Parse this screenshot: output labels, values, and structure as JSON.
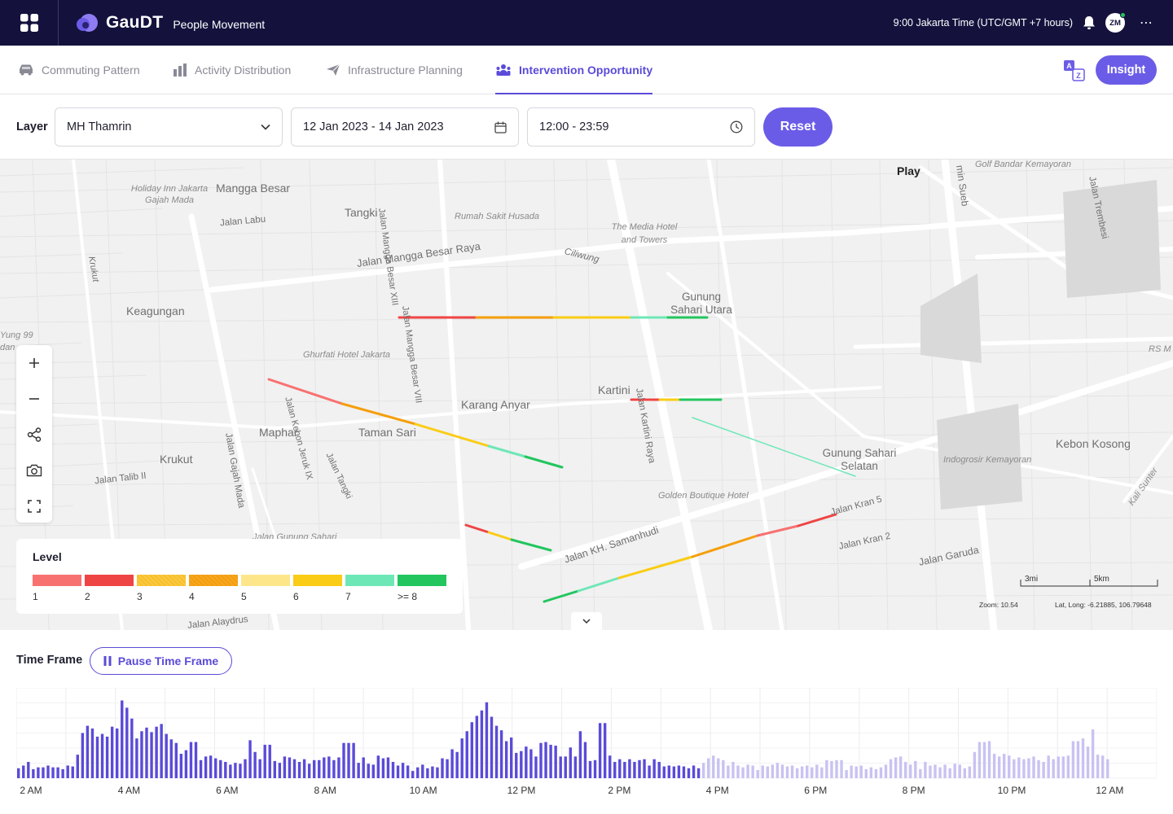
{
  "app": {
    "brand": "GauDT",
    "module": "People Movement",
    "time_zone_text": "9:00 Jakarta Time (UTC/GMT +7 hours)",
    "user_initials": "ZM",
    "more_label": "⋯"
  },
  "tabs": [
    {
      "label": "Commuting Pattern",
      "icon": "car-icon",
      "active": false
    },
    {
      "label": "Activity Distribution",
      "icon": "bar-building-icon",
      "active": false
    },
    {
      "label": "Infrastructure Planning",
      "icon": "paper-plane-icon",
      "active": false
    },
    {
      "label": "Intervention Opportunity",
      "icon": "people-icon",
      "active": true
    }
  ],
  "header_actions": {
    "translate_icon": "translate-icon",
    "insight_label": "Insight"
  },
  "filters": {
    "layer_label": "Layer",
    "layer_value": "MH Thamrin",
    "date_range": "12 Jan 2023 - 14 Jan 2023",
    "time_range": "12:00 - 23:59",
    "reset_label": "Reset"
  },
  "map": {
    "play_label": "Play",
    "labels": [
      "Mangga Besar",
      "Tangki",
      "Keagungan",
      "Karang Anyar",
      "Kartini",
      "Maphar",
      "Taman Sari",
      "Krukut",
      "Gunung Sahari Utara",
      "Gunung Sahari Selatan",
      "Kebon Kosong",
      "Jalan Mangga Besar Raya",
      "Jalan Labu",
      "Jalan Mangga Besar XIII",
      "Jalan Mangga Besar VIII",
      "Jalan Kebon Jeruk IX",
      "Jalan Tangki",
      "Jalan Gajah Mada",
      "Jalan Talib II",
      "Jalan Kartini Raya",
      "Jalan KH. Samanhudi",
      "Jalan Kran 5",
      "Jalan Kran 2",
      "Jalan Garuda",
      "Jalan Alaydrus",
      "Ciliwung",
      "Jalan Trembesi",
      "Krukut",
      "Holiday Inn Jakarta Gajah Mada",
      "Rumah Sakit Husada",
      "The Media Hotel and Towers",
      "Ghurfati Hotel Jakarta",
      "Golden Boutique Hotel",
      "Indogrosir Kemayoran",
      "Golf Bandar Kemayoran",
      "RS M",
      "Kali Sunter",
      "Jalan Gunung Sahari",
      "Yung 99",
      "dan",
      "min Sueb"
    ],
    "controls": [
      {
        "name": "zoom-in-button",
        "icon": "plus-icon"
      },
      {
        "name": "zoom-out-button",
        "icon": "minus-icon"
      },
      {
        "name": "share-button",
        "icon": "share-icon"
      },
      {
        "name": "screenshot-button",
        "icon": "camera-icon"
      },
      {
        "name": "fullscreen-button",
        "icon": "fullscreen-icon"
      }
    ],
    "scale": {
      "left": "3mi",
      "right": "5km"
    },
    "zoom_text": "Zoom: 10.54",
    "latlon_text": "Lat, Long: -6.21885, 106.79648",
    "legend": {
      "title": "Level",
      "items": [
        {
          "label": "1",
          "color": "#f87171"
        },
        {
          "label": "2",
          "color": "#ef4444"
        },
        {
          "label": "3",
          "color": "#fbbf24"
        },
        {
          "label": "4",
          "color": "#f59e0b"
        },
        {
          "label": "5",
          "color": "#fde68a"
        },
        {
          "label": "6",
          "color": "#facc15"
        },
        {
          "label": "7",
          "color": "#6ee7b7"
        },
        {
          "label": ">= 8",
          "color": "#22c55e"
        }
      ]
    },
    "level_colors": [
      "#f87171",
      "#ef4444",
      "#f59e0b",
      "#f59e0b",
      "#fde047",
      "#facc15",
      "#6ee7b7",
      "#22c55e"
    ]
  },
  "time_frame": {
    "label": "Time Frame",
    "pause_label": "Pause Time Frame",
    "accent_color": "#5a4bd8",
    "faded_color": "#c9c2f2",
    "x_ticks": [
      "2 AM",
      "4 AM",
      "6 AM",
      "8 AM",
      "10 AM",
      "12 PM",
      "2 PM",
      "4 PM",
      "6 PM",
      "8 PM",
      "10 PM",
      "12 AM"
    ]
  },
  "chart_data": {
    "type": "bar",
    "title": "",
    "xlabel": "",
    "ylabel": "",
    "x_start": "1:40 AM",
    "x_interval_minutes": 10,
    "played_count": 139,
    "x_ticks": [
      "2 AM",
      "4 AM",
      "6 AM",
      "8 AM",
      "10 AM",
      "12 PM",
      "2 PM",
      "4 PM",
      "6 PM",
      "8 PM",
      "10 PM",
      "12 AM"
    ],
    "values": [
      11,
      14,
      18,
      10,
      12,
      12,
      14,
      12,
      12,
      10,
      14,
      13,
      26,
      50,
      58,
      55,
      46,
      49,
      46,
      57,
      55,
      86,
      78,
      66,
      44,
      52,
      56,
      51,
      57,
      60,
      49,
      43,
      39,
      27,
      31,
      40,
      40,
      20,
      24,
      25,
      22,
      20,
      18,
      15,
      17,
      16,
      21,
      42,
      29,
      21,
      37,
      37,
      19,
      17,
      24,
      23,
      21,
      18,
      21,
      16,
      20,
      20,
      23,
      24,
      20,
      23,
      39,
      39,
      39,
      17,
      23,
      16,
      15,
      25,
      22,
      23,
      18,
      14,
      17,
      14,
      8,
      12,
      15,
      11,
      13,
      12,
      22,
      21,
      32,
      29,
      44,
      52,
      62,
      69,
      75,
      84,
      68,
      58,
      53,
      41,
      45,
      28,
      30,
      35,
      32,
      24,
      39,
      40,
      37,
      36,
      24,
      24,
      34,
      24,
      52,
      40,
      19,
      20,
      61,
      61,
      25,
      18,
      21,
      18,
      21,
      18,
      20,
      21,
      14,
      21,
      18,
      13,
      14,
      13,
      14,
      13,
      11,
      14,
      11,
      17,
      22,
      25,
      22,
      20,
      14,
      18,
      14,
      12,
      15,
      14,
      9,
      14,
      13,
      15,
      17,
      15,
      13,
      14,
      11,
      13,
      14,
      12,
      15,
      12,
      20,
      19,
      20,
      20,
      9,
      14,
      13,
      14,
      10,
      12,
      10,
      12,
      15,
      21,
      23,
      24,
      18,
      15,
      19,
      10,
      18,
      14,
      15,
      12,
      15,
      11,
      16,
      15,
      11,
      13,
      29,
      40,
      40,
      41,
      27,
      24,
      27,
      25,
      21,
      23,
      21,
      22,
      24,
      20,
      18,
      25,
      21,
      24,
      24,
      25,
      41,
      41,
      44,
      35,
      54,
      26,
      25,
      21
    ]
  }
}
